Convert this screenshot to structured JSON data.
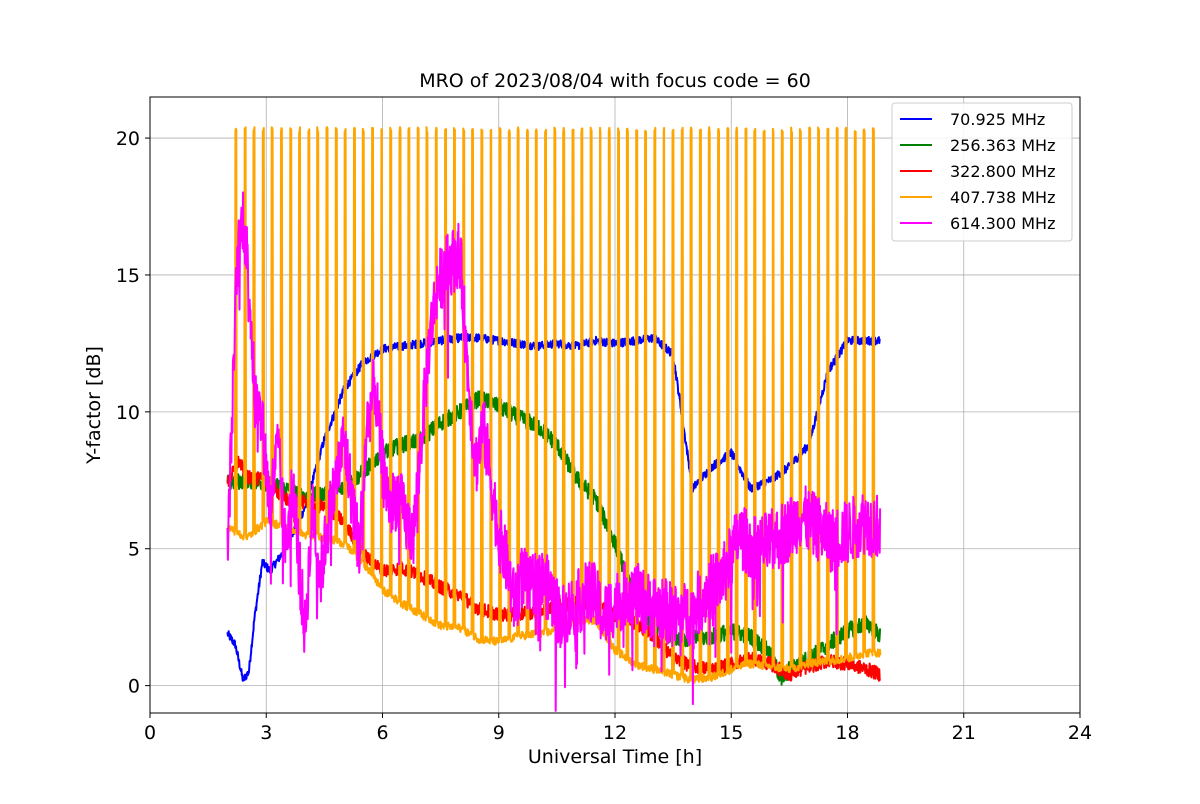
{
  "chart_data": {
    "type": "line",
    "title": "MRO of 2023/08/04 with focus code = 60",
    "xlabel": "Universal Time [h]",
    "ylabel": "Y-factor [dB]",
    "xlim": [
      0,
      24
    ],
    "ylim": [
      -1,
      21.5
    ],
    "xticks": [
      0,
      3,
      6,
      9,
      12,
      15,
      18,
      21,
      24
    ],
    "yticks": [
      0,
      5,
      10,
      15,
      20
    ],
    "grid": true,
    "legend_position": "top-right",
    "series": [
      {
        "name": " 70.925 MHz",
        "color": "#0000ff",
        "x": [
          2.0,
          2.2,
          2.4,
          2.55,
          2.7,
          2.9,
          3.1,
          3.5,
          4.0,
          4.5,
          5.0,
          5.5,
          6.0,
          6.5,
          7.0,
          7.5,
          8.0,
          8.5,
          9.0,
          9.5,
          10.0,
          10.5,
          11.0,
          11.5,
          12.0,
          12.5,
          13.0,
          13.5,
          14.0,
          14.5,
          15.0,
          15.5,
          16.0,
          16.5,
          17.0,
          17.5,
          18.0,
          18.5,
          18.85
        ],
        "y": [
          1.9,
          1.5,
          0.2,
          0.5,
          2.5,
          4.5,
          4.2,
          5.0,
          6.5,
          9.0,
          10.8,
          11.8,
          12.3,
          12.4,
          12.5,
          12.6,
          12.7,
          12.7,
          12.6,
          12.5,
          12.4,
          12.5,
          12.4,
          12.6,
          12.5,
          12.6,
          12.7,
          12.1,
          7.2,
          8.0,
          8.5,
          7.2,
          7.5,
          8.0,
          8.8,
          11.5,
          12.6,
          12.6,
          12.6
        ]
      },
      {
        "name": "256.363 MHz",
        "color": "#008000",
        "x": [
          2.0,
          2.5,
          3.0,
          3.5,
          4.0,
          4.5,
          5.0,
          5.5,
          6.0,
          6.5,
          7.0,
          7.5,
          8.0,
          8.5,
          9.0,
          9.5,
          10.0,
          10.5,
          11.0,
          11.5,
          12.0,
          12.5,
          13.0,
          13.5,
          14.0,
          14.5,
          15.0,
          15.5,
          16.0,
          16.3,
          16.5,
          17.0,
          17.5,
          18.0,
          18.5,
          18.85
        ],
        "y": [
          7.4,
          7.5,
          7.4,
          7.2,
          6.9,
          7.0,
          7.2,
          7.8,
          8.5,
          8.8,
          9.0,
          9.6,
          10.0,
          10.5,
          10.2,
          9.8,
          9.5,
          8.8,
          7.6,
          6.8,
          5.2,
          3.2,
          2.1,
          1.8,
          1.7,
          1.8,
          2.0,
          1.8,
          1.2,
          0.2,
          0.6,
          1.0,
          1.5,
          2.0,
          2.3,
          1.8
        ]
      },
      {
        "name": "322.800 MHz",
        "color": "#ff0000",
        "x": [
          2.0,
          2.3,
          2.5,
          3.0,
          3.5,
          4.0,
          4.5,
          5.0,
          5.5,
          6.0,
          6.5,
          7.0,
          7.5,
          8.0,
          8.5,
          9.0,
          9.5,
          10.0,
          10.5,
          11.0,
          11.5,
          12.0,
          12.5,
          13.0,
          13.5,
          14.0,
          14.5,
          15.0,
          15.5,
          16.0,
          16.5,
          17.0,
          17.5,
          18.0,
          18.5,
          18.85
        ],
        "y": [
          7.4,
          8.2,
          7.6,
          7.5,
          6.8,
          6.7,
          6.5,
          6.0,
          4.8,
          4.2,
          4.3,
          4.0,
          3.6,
          3.3,
          2.8,
          2.6,
          2.6,
          2.7,
          2.9,
          3.0,
          3.0,
          2.6,
          2.3,
          1.8,
          1.0,
          0.7,
          0.6,
          0.8,
          1.0,
          0.8,
          0.4,
          0.7,
          0.9,
          0.8,
          0.6,
          0.4
        ]
      },
      {
        "name": "407.738 MHz",
        "color": "#ffa500",
        "baseline_x": [
          2.0,
          2.5,
          3.0,
          3.5,
          4.0,
          4.5,
          5.0,
          5.5,
          6.0,
          6.5,
          7.0,
          7.5,
          8.0,
          8.5,
          9.0,
          9.5,
          10.0,
          10.5,
          11.0,
          11.5,
          12.0,
          12.5,
          13.0,
          13.5,
          14.0,
          14.5,
          15.0,
          15.5,
          16.0,
          16.5,
          17.0,
          17.5,
          18.0,
          18.5,
          18.85
        ],
        "baseline_y": [
          5.8,
          5.4,
          6.0,
          5.8,
          5.5,
          5.4,
          5.2,
          4.5,
          3.5,
          3.0,
          2.6,
          2.2,
          2.1,
          1.7,
          1.6,
          1.8,
          1.9,
          2.0,
          2.4,
          2.4,
          1.3,
          0.8,
          0.6,
          0.4,
          0.2,
          0.3,
          0.6,
          0.8,
          0.7,
          0.6,
          0.8,
          0.9,
          1.0,
          1.2,
          1.2
        ],
        "spike_start": 2.2,
        "spike_period": 0.235,
        "spike_peak": 20.4
      },
      {
        "name": "614.300 MHz",
        "color": "#ff00ff",
        "x": [
          2.0,
          2.1,
          2.25,
          2.4,
          2.55,
          2.7,
          2.9,
          3.1,
          3.3,
          3.5,
          3.7,
          3.9,
          4.0,
          4.2,
          4.4,
          4.6,
          4.8,
          5.0,
          5.2,
          5.4,
          5.6,
          5.8,
          6.0,
          6.2,
          6.4,
          6.6,
          6.8,
          7.0,
          7.2,
          7.4,
          7.6,
          7.8,
          8.0,
          8.2,
          8.4,
          8.6,
          8.8,
          9.0,
          9.2,
          9.4,
          9.6,
          9.8,
          10.0,
          10.3,
          10.6,
          11.0,
          11.4,
          11.7,
          12.0,
          12.4,
          12.8,
          13.2,
          13.6,
          14.0,
          14.4,
          14.8,
          15.2,
          15.6,
          16.0,
          16.4,
          16.8,
          17.2,
          17.6,
          18.0,
          18.4,
          18.85
        ],
        "y": [
          4.8,
          9.0,
          15.5,
          17.2,
          15.0,
          10.5,
          9.5,
          6.5,
          8.8,
          5.0,
          7.5,
          3.5,
          2.0,
          6.5,
          4.0,
          6.0,
          7.5,
          9.0,
          7.0,
          5.0,
          9.5,
          11.0,
          8.0,
          6.5,
          7.0,
          6.0,
          5.5,
          9.0,
          12.5,
          14.5,
          15.2,
          15.5,
          15.8,
          11.5,
          8.0,
          9.5,
          7.5,
          5.5,
          4.5,
          3.0,
          4.0,
          3.5,
          4.0,
          3.5,
          2.5,
          3.0,
          3.5,
          2.5,
          3.0,
          3.5,
          3.0,
          2.8,
          2.5,
          2.7,
          3.5,
          4.0,
          5.5,
          5.0,
          5.2,
          5.6,
          6.2,
          5.8,
          5.3,
          5.6,
          6.0,
          5.8
        ]
      }
    ]
  }
}
